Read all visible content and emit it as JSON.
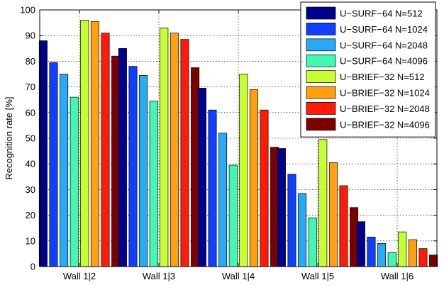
{
  "chart_data": {
    "type": "bar",
    "title": "",
    "xlabel": "",
    "ylabel": "Recognition rate [%]",
    "ylim": [
      0,
      100
    ],
    "yticks": [
      0,
      10,
      20,
      30,
      40,
      50,
      60,
      70,
      80,
      90,
      100
    ],
    "grid": true,
    "legend_position": "top-right",
    "categories": [
      "Wall 1|2",
      "Wall 1|3",
      "Wall 1|4",
      "Wall 1|5",
      "Wall 1|6"
    ],
    "series": [
      {
        "name": "U−SURF−64 N=512",
        "color": "#00008f",
        "values": [
          88,
          85,
          69.5,
          46,
          17.5
        ]
      },
      {
        "name": "U−SURF−64 N=1024",
        "color": "#0f3fff",
        "values": [
          79.5,
          78,
          61,
          36,
          11.5
        ]
      },
      {
        "name": "U−SURF−64 N=2048",
        "color": "#28aaf7",
        "values": [
          75,
          74.5,
          52,
          28.5,
          9
        ]
      },
      {
        "name": "U−SURF−64 N=4096",
        "color": "#40f8b0",
        "values": [
          66,
          64.5,
          39.5,
          19,
          5.5
        ]
      },
      {
        "name": "U−BRIEF−32 N=512",
        "color": "#c6ff30",
        "values": [
          96,
          93,
          75,
          49.5,
          13.5
        ]
      },
      {
        "name": "U−BRIEF−32 N=1024",
        "color": "#ffa010",
        "values": [
          95.5,
          91,
          69,
          40.5,
          10.5
        ]
      },
      {
        "name": "U−BRIEF−32 N=2048",
        "color": "#ff1a0a",
        "values": [
          91,
          88.5,
          61,
          31.5,
          7
        ]
      },
      {
        "name": "U−BRIEF−32 N=4096",
        "color": "#7d0000",
        "values": [
          82,
          77.5,
          46.5,
          23,
          4.5
        ]
      }
    ]
  }
}
